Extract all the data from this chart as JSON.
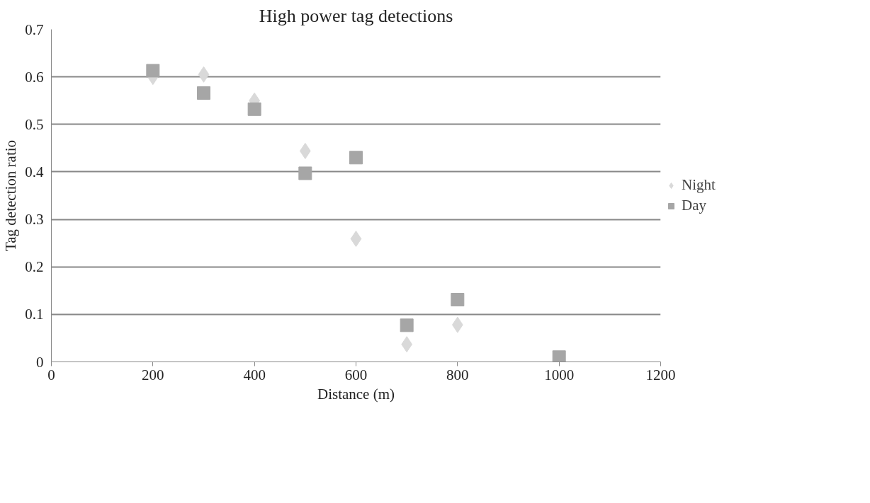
{
  "chart_data": {
    "type": "scatter",
    "title": "High power tag detections",
    "xlabel": "Distance (m)",
    "ylabel": "Tag detection ratio",
    "x": [
      200,
      300,
      400,
      500,
      600,
      700,
      800,
      1000
    ],
    "series": [
      {
        "name": "Night",
        "color": "#d9d9d9",
        "marker": "diamond",
        "values": [
          0.6,
          0.605,
          0.55,
          0.444,
          0.259,
          0.037,
          0.078,
          null
        ]
      },
      {
        "name": "Day",
        "color": "#a6a6a6",
        "marker": "square",
        "values": [
          0.613,
          0.566,
          0.532,
          0.397,
          0.43,
          0.077,
          0.131,
          0.01
        ]
      }
    ],
    "xlim": [
      0,
      1200
    ],
    "xticks": [
      0,
      200,
      400,
      600,
      800,
      1000,
      1200
    ],
    "ylim": [
      0,
      0.7
    ],
    "yticks": [
      0,
      0.1,
      0.2,
      0.3,
      0.4,
      0.5,
      0.6,
      0.7
    ],
    "grid": "y",
    "legend": "right"
  }
}
